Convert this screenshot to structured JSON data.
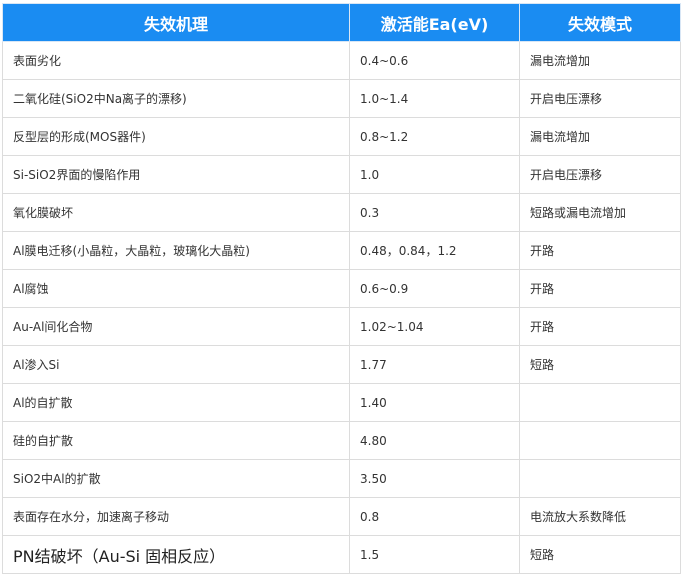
{
  "headers": [
    "失效机理",
    "激活能Ea(eV)",
    "失效模式"
  ],
  "header_color": "#1a8cf2",
  "rows": [
    [
      "表面劣化",
      "0.4~0.6",
      "漏电流增加"
    ],
    [
      "二氧化硅(SiO2中Na离子的漂移)",
      "1.0~1.4",
      "开启电压漂移"
    ],
    [
      "反型层的形成(MOS器件)",
      "0.8~1.2",
      "漏电流增加"
    ],
    [
      "Si-SiO2界面的慢陷作用",
      "1.0",
      "开启电压漂移"
    ],
    [
      "氧化膜破坏",
      "0.3",
      "短路或漏电流增加"
    ],
    [
      "Al膜电迁移(小晶粒，大晶粒，玻璃化大晶粒)",
      "0.48，0.84，1.2",
      "开路"
    ],
    [
      "Al腐蚀",
      "0.6~0.9",
      "开路"
    ],
    [
      "Au-Al间化合物",
      "1.02~1.04",
      "开路"
    ],
    [
      "Al渗入Si",
      "1.77",
      "短路"
    ],
    [
      "Al的自扩散",
      "1.40",
      ""
    ],
    [
      "硅的自扩散",
      "4.80",
      ""
    ],
    [
      "SiO2中Al的扩散",
      "3.50",
      ""
    ],
    [
      "表面存在水分，加速离子移动",
      "0.8",
      "电流放大系数降低"
    ],
    [
      "PN结破坏（Au-Si 固相反应）",
      "1.5",
      "短路"
    ]
  ]
}
